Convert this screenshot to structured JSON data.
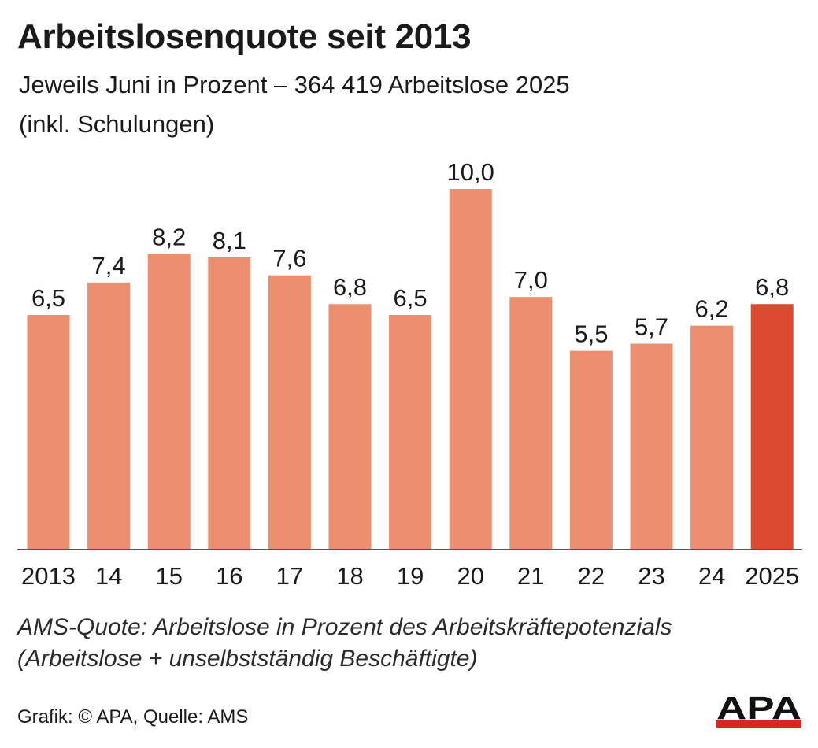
{
  "header": {
    "title": "Arbeitslosenquote seit 2013",
    "subtitle_line1": "Jeweils Juni in Prozent – 364 419 Arbeitslose 2025",
    "subtitle_line2": "(inkl. Schulungen)"
  },
  "chart_data": {
    "type": "bar",
    "title": "Arbeitslosenquote seit 2013",
    "subtitle": "Jeweils Juni in Prozent – 364 419 Arbeitslose 2025 (inkl. Schulungen)",
    "xlabel": "",
    "ylabel": "",
    "categories": [
      "2013",
      "14",
      "15",
      "16",
      "17",
      "18",
      "19",
      "20",
      "21",
      "22",
      "23",
      "24",
      "2025"
    ],
    "values": [
      6.5,
      7.4,
      8.2,
      8.1,
      7.6,
      6.8,
      6.5,
      10.0,
      7.0,
      5.5,
      5.7,
      6.2,
      6.8
    ],
    "value_labels": [
      "6,5",
      "7,4",
      "8,2",
      "8,1",
      "7,6",
      "6,8",
      "6,5",
      "10,0",
      "7,0",
      "5,5",
      "5,7",
      "6,2",
      "6,8"
    ],
    "ylim": [
      0,
      10
    ],
    "grid": false,
    "legend": "none",
    "colors": {
      "bar": "#eb8f6e",
      "highlight": "#db4a2e",
      "highlight_index": 12
    }
  },
  "footnote": {
    "line1": "AMS-Quote: Arbeitslose in Prozent des Arbeitskräftepotenzials",
    "line2": "(Arbeitslose + unselbstständig Beschäftigte)"
  },
  "source": "Grafik: © APA, Quelle: AMS",
  "logo": {
    "text": "APA",
    "colors": {
      "text": "#111111",
      "bar": "#d9271f"
    }
  }
}
